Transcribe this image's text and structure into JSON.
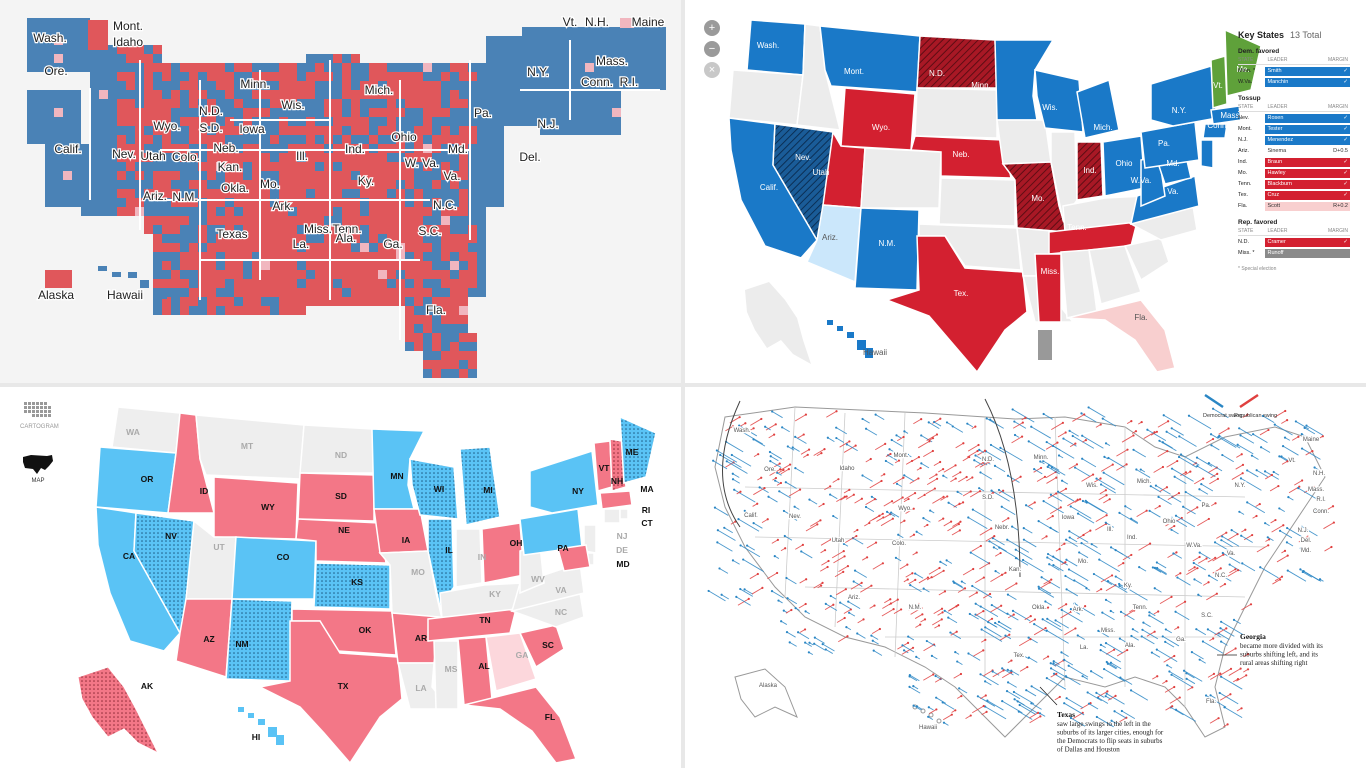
{
  "colors": {
    "dem": "#4a82b6",
    "rep": "#e0575b",
    "nyt_dem": "#1a79c8",
    "nyt_rep": "#d32030",
    "nyt_lean_rep": "#f8cfcf",
    "nyt_lean_dem": "#cbe7fb",
    "nyt_ind": "#5fa13a",
    "p3_dem": "#5ac3f5",
    "p3_rep": "#f37787",
    "p3_neutral": "#eeeeee",
    "p3_lean_rep": "#fcd7dc",
    "p4_dem_arrow": "#2a86c4",
    "p4_rep_arrow": "#e0403f"
  },
  "panel1": {
    "labels": [
      {
        "id": "mont",
        "text": "Mont."
      },
      {
        "id": "idaho",
        "text": "Idaho"
      },
      {
        "id": "wash",
        "text": "Wash."
      },
      {
        "id": "ore",
        "text": "Ore."
      },
      {
        "id": "calif",
        "text": "Calif."
      },
      {
        "id": "nev",
        "text": "Nev."
      },
      {
        "id": "utah",
        "text": "Utah"
      },
      {
        "id": "colo",
        "text": "Colo."
      },
      {
        "id": "ariz",
        "text": "Ariz."
      },
      {
        "id": "nm",
        "text": "N.M."
      },
      {
        "id": "wyo",
        "text": "Wyo."
      },
      {
        "id": "nd",
        "text": "N.D."
      },
      {
        "id": "sd",
        "text": "S.D."
      },
      {
        "id": "neb",
        "text": "Neb."
      },
      {
        "id": "kan",
        "text": "Kan."
      },
      {
        "id": "okla",
        "text": "Okla."
      },
      {
        "id": "texas",
        "text": "Texas"
      },
      {
        "id": "minn",
        "text": "Minn."
      },
      {
        "id": "iowa",
        "text": "Iowa"
      },
      {
        "id": "mo",
        "text": "Mo."
      },
      {
        "id": "ark",
        "text": "Ark."
      },
      {
        "id": "la",
        "text": "La."
      },
      {
        "id": "wis",
        "text": "Wis."
      },
      {
        "id": "ill",
        "text": "Ill."
      },
      {
        "id": "mich",
        "text": "Mich."
      },
      {
        "id": "ind",
        "text": "Ind."
      },
      {
        "id": "ohio",
        "text": "Ohio"
      },
      {
        "id": "ky",
        "text": "Ky."
      },
      {
        "id": "tenn",
        "text": "Tenn."
      },
      {
        "id": "miss",
        "text": "Miss."
      },
      {
        "id": "ala",
        "text": "Ala."
      },
      {
        "id": "ga",
        "text": "Ga."
      },
      {
        "id": "fla",
        "text": "Fla."
      },
      {
        "id": "sc",
        "text": "S.C."
      },
      {
        "id": "nc",
        "text": "N.C."
      },
      {
        "id": "va",
        "text": "Va."
      },
      {
        "id": "wva",
        "text": "W. Va."
      },
      {
        "id": "md",
        "text": "Md."
      },
      {
        "id": "del",
        "text": "Del."
      },
      {
        "id": "pa",
        "text": "Pa."
      },
      {
        "id": "nj",
        "text": "N.J."
      },
      {
        "id": "ny",
        "text": "N.Y."
      },
      {
        "id": "conn",
        "text": "Conn."
      },
      {
        "id": "ri",
        "text": "R.I."
      },
      {
        "id": "mass",
        "text": "Mass."
      },
      {
        "id": "vt",
        "text": "Vt."
      },
      {
        "id": "nh",
        "text": "N.H."
      },
      {
        "id": "maine",
        "text": "Maine"
      },
      {
        "id": "alaska",
        "text": "Alaska"
      },
      {
        "id": "hawaii",
        "text": "Hawaii"
      }
    ]
  },
  "panel2": {
    "zoom_in": "+",
    "zoom_out": "−",
    "reset": "×",
    "key_states": {
      "title": "Key States",
      "total": "13 Total",
      "col_state": "STATE",
      "col_leader": "LEADER",
      "col_margin": "MARGIN",
      "sections": [
        {
          "title": "Dem. favored",
          "rows": [
            {
              "state": "Minn. *",
              "leader": "Smith",
              "margin": "✓",
              "kind": "dem"
            },
            {
              "state": "W.Va.",
              "leader": "Manchin",
              "margin": "✓",
              "kind": "dem"
            }
          ]
        },
        {
          "title": "Tossup",
          "rows": [
            {
              "state": "Nev.",
              "leader": "Rosen",
              "margin": "✓",
              "kind": "dem"
            },
            {
              "state": "Mont.",
              "leader": "Tester",
              "margin": "✓",
              "kind": "dem"
            },
            {
              "state": "N.J.",
              "leader": "Menendez",
              "margin": "✓",
              "kind": "dem"
            },
            {
              "state": "Ariz.",
              "leader": "Sinema",
              "margin": "D+0.5",
              "kind": "none"
            },
            {
              "state": "Ind.",
              "leader": "Braun",
              "margin": "✓",
              "kind": "rep"
            },
            {
              "state": "Mo.",
              "leader": "Hawley",
              "margin": "✓",
              "kind": "rep"
            },
            {
              "state": "Tenn.",
              "leader": "Blackburn",
              "margin": "✓",
              "kind": "rep"
            },
            {
              "state": "Tex.",
              "leader": "Cruz",
              "margin": "✓",
              "kind": "rep"
            },
            {
              "state": "Fla.",
              "leader": "Scott",
              "margin": "R+0.2",
              "kind": "leanrep"
            }
          ]
        },
        {
          "title": "Rep. favored",
          "rows": [
            {
              "state": "N.D.",
              "leader": "Cramer",
              "margin": "✓",
              "kind": "rep"
            },
            {
              "state": "Miss. *",
              "leader": "Runoff",
              "margin": "",
              "kind": "gray"
            }
          ]
        }
      ],
      "note": "* Special election"
    },
    "labels": [
      {
        "id": "wash",
        "text": "Wash."
      },
      {
        "id": "mont",
        "text": "Mont."
      },
      {
        "id": "nd",
        "text": "N.D."
      },
      {
        "id": "minn",
        "text": "Minn."
      },
      {
        "id": "wis",
        "text": "Wis."
      },
      {
        "id": "mich",
        "text": "Mich."
      },
      {
        "id": "ny",
        "text": "N.Y."
      },
      {
        "id": "vt",
        "text": "Vt."
      },
      {
        "id": "me",
        "text": "Me."
      },
      {
        "id": "mass",
        "text": "Mass."
      },
      {
        "id": "conn",
        "text": "Conn."
      },
      {
        "id": "pa",
        "text": "Pa."
      },
      {
        "id": "ohio",
        "text": "Ohio"
      },
      {
        "id": "ind",
        "text": "Ind."
      },
      {
        "id": "wva",
        "text": "W.Va."
      },
      {
        "id": "va",
        "text": "Va."
      },
      {
        "id": "md",
        "text": "Md."
      },
      {
        "id": "nev",
        "text": "Nev."
      },
      {
        "id": "calif",
        "text": "Calif."
      },
      {
        "id": "utah",
        "text": "Utah"
      },
      {
        "id": "wyo",
        "text": "Wyo."
      },
      {
        "id": "neb",
        "text": "Neb."
      },
      {
        "id": "mo",
        "text": "Mo."
      },
      {
        "id": "tenn",
        "text": "Tenn."
      },
      {
        "id": "ariz",
        "text": "Ariz."
      },
      {
        "id": "nm",
        "text": "N.M."
      },
      {
        "id": "tex",
        "text": "Tex."
      },
      {
        "id": "miss",
        "text": "Miss."
      },
      {
        "id": "fla",
        "text": "Fla."
      },
      {
        "id": "hawaii",
        "text": "Hawaii"
      }
    ]
  },
  "panel3": {
    "toggle_cartogram": "CARTOGRAM",
    "toggle_map": "MAP",
    "labels": [
      {
        "id": "wa",
        "text": "WA"
      },
      {
        "id": "or",
        "text": "OR"
      },
      {
        "id": "ca",
        "text": "CA"
      },
      {
        "id": "nv",
        "text": "NV"
      },
      {
        "id": "id",
        "text": "ID"
      },
      {
        "id": "mt",
        "text": "MT"
      },
      {
        "id": "wy",
        "text": "WY"
      },
      {
        "id": "ut",
        "text": "UT"
      },
      {
        "id": "co",
        "text": "CO"
      },
      {
        "id": "az",
        "text": "AZ"
      },
      {
        "id": "nm",
        "text": "NM"
      },
      {
        "id": "nd",
        "text": "ND"
      },
      {
        "id": "sd",
        "text": "SD"
      },
      {
        "id": "ne",
        "text": "NE"
      },
      {
        "id": "ks",
        "text": "KS"
      },
      {
        "id": "ok",
        "text": "OK"
      },
      {
        "id": "tx",
        "text": "TX"
      },
      {
        "id": "mn",
        "text": "MN"
      },
      {
        "id": "ia",
        "text": "IA"
      },
      {
        "id": "mo",
        "text": "MO"
      },
      {
        "id": "ar",
        "text": "AR"
      },
      {
        "id": "la",
        "text": "LA"
      },
      {
        "id": "wi",
        "text": "WI"
      },
      {
        "id": "il",
        "text": "IL"
      },
      {
        "id": "mi",
        "text": "MI"
      },
      {
        "id": "in",
        "text": "IN"
      },
      {
        "id": "oh",
        "text": "OH"
      },
      {
        "id": "ky",
        "text": "KY"
      },
      {
        "id": "tn",
        "text": "TN"
      },
      {
        "id": "ms",
        "text": "MS"
      },
      {
        "id": "al",
        "text": "AL"
      },
      {
        "id": "ga",
        "text": "GA"
      },
      {
        "id": "fl",
        "text": "FL"
      },
      {
        "id": "sc",
        "text": "SC"
      },
      {
        "id": "nc",
        "text": "NC"
      },
      {
        "id": "va",
        "text": "VA"
      },
      {
        "id": "wv",
        "text": "WV"
      },
      {
        "id": "pa",
        "text": "PA"
      },
      {
        "id": "ny",
        "text": "NY"
      },
      {
        "id": "vt",
        "text": "VT"
      },
      {
        "id": "nh",
        "text": "NH"
      },
      {
        "id": "me",
        "text": "ME"
      },
      {
        "id": "ma",
        "text": "MA"
      },
      {
        "id": "ri",
        "text": "RI"
      },
      {
        "id": "ct",
        "text": "CT"
      },
      {
        "id": "nj",
        "text": "NJ"
      },
      {
        "id": "de",
        "text": "DE"
      },
      {
        "id": "md",
        "text": "MD"
      },
      {
        "id": "ak",
        "text": "AK"
      },
      {
        "id": "hi",
        "text": "HI"
      }
    ]
  },
  "panel4": {
    "legend_dem": "Democrat swing",
    "legend_rep": "Republican swing",
    "georgia_title": "Georgia",
    "georgia_text": "became more divided with its suburbs shifting left, and its rural areas shifting right",
    "texas_title": "Texas",
    "texas_text": "saw large swings to the left in the suburbs of its larger cities, enough for the Democrats to flip seats in suburbs of Dallas and Houston",
    "labels": [
      {
        "id": "wash",
        "text": "Wash."
      },
      {
        "id": "ore",
        "text": "Ore."
      },
      {
        "id": "calif",
        "text": "Calif."
      },
      {
        "id": "nev",
        "text": "Nev."
      },
      {
        "id": "idaho",
        "text": "Idaho"
      },
      {
        "id": "mont",
        "text": "Mont."
      },
      {
        "id": "wyo",
        "text": "Wyo."
      },
      {
        "id": "utah",
        "text": "Utah"
      },
      {
        "id": "colo",
        "text": "Colo."
      },
      {
        "id": "ariz",
        "text": "Ariz."
      },
      {
        "id": "nm",
        "text": "N.M."
      },
      {
        "id": "nd",
        "text": "N.D."
      },
      {
        "id": "sd",
        "text": "S.D."
      },
      {
        "id": "nebr",
        "text": "Nebr."
      },
      {
        "id": "kan",
        "text": "Kan."
      },
      {
        "id": "okla",
        "text": "Okla."
      },
      {
        "id": "tex",
        "text": "Tex."
      },
      {
        "id": "minn",
        "text": "Minn."
      },
      {
        "id": "iowa",
        "text": "Iowa"
      },
      {
        "id": "mo",
        "text": "Mo."
      },
      {
        "id": "ark",
        "text": "Ark."
      },
      {
        "id": "la",
        "text": "La."
      },
      {
        "id": "wis",
        "text": "Wis."
      },
      {
        "id": "ill",
        "text": "Ill."
      },
      {
        "id": "mich",
        "text": "Mich."
      },
      {
        "id": "ind",
        "text": "Ind."
      },
      {
        "id": "ohio",
        "text": "Ohio"
      },
      {
        "id": "ky",
        "text": "Ky."
      },
      {
        "id": "tenn",
        "text": "Tenn."
      },
      {
        "id": "miss",
        "text": "Miss."
      },
      {
        "id": "ala",
        "text": "Ala."
      },
      {
        "id": "ga",
        "text": "Ga."
      },
      {
        "id": "fla",
        "text": "Fla."
      },
      {
        "id": "sc",
        "text": "S.C."
      },
      {
        "id": "nc",
        "text": "N.C."
      },
      {
        "id": "va",
        "text": "Va."
      },
      {
        "id": "wva",
        "text": "W.Va."
      },
      {
        "id": "pa",
        "text": "Pa."
      },
      {
        "id": "ny",
        "text": "N.Y."
      },
      {
        "id": "nj",
        "text": "N.J."
      },
      {
        "id": "del",
        "text": "Del."
      },
      {
        "id": "md",
        "text": "Md."
      },
      {
        "id": "conn",
        "text": "Conn."
      },
      {
        "id": "ri",
        "text": "R.I."
      },
      {
        "id": "mass",
        "text": "Mass."
      },
      {
        "id": "nh",
        "text": "N.H."
      },
      {
        "id": "vt",
        "text": "Vt."
      },
      {
        "id": "maine",
        "text": "Maine"
      },
      {
        "id": "alaska",
        "text": "Alaska"
      },
      {
        "id": "hawaii",
        "text": "Hawaii"
      }
    ]
  }
}
